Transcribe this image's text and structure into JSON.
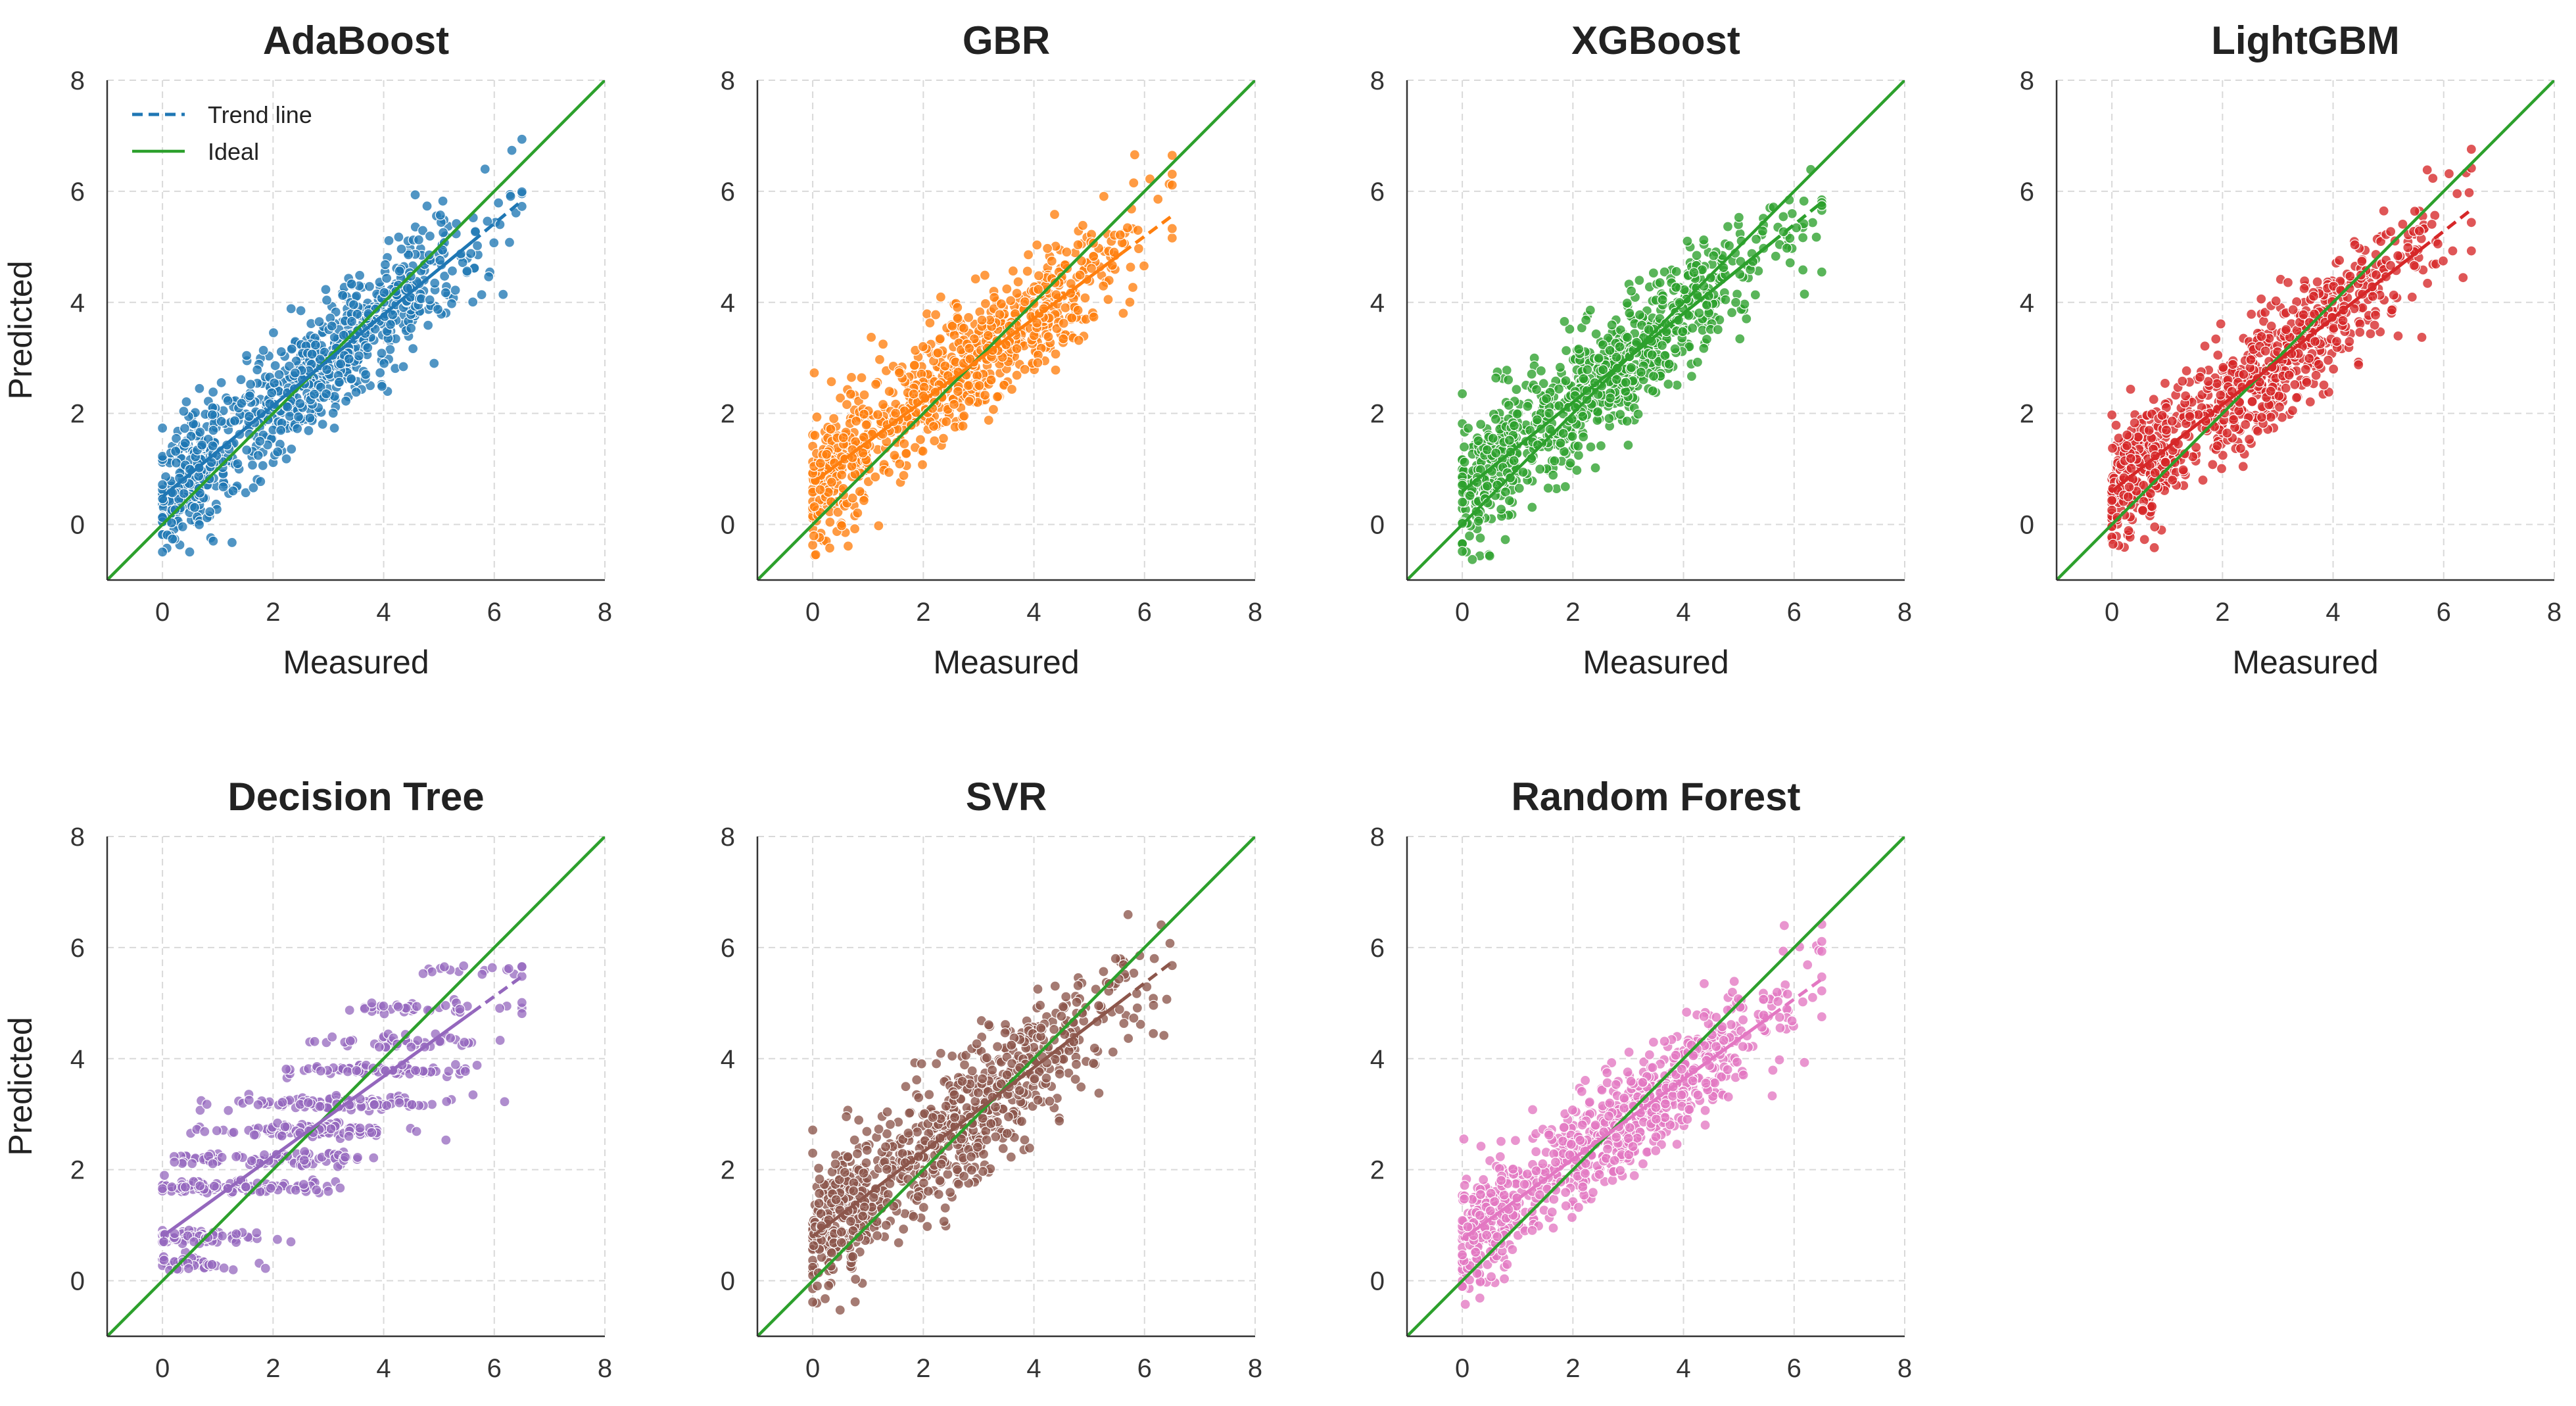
{
  "figure": {
    "ideal_color": "#2ca02c",
    "legend": {
      "trend_label": "Trend line",
      "ideal_label": "Ideal",
      "location": "upper-left"
    }
  },
  "chart_data": [
    {
      "type": "scatter",
      "title": "AdaBoost",
      "color": "#1f77b4",
      "xlabel": "Measured",
      "ylabel": "Predicted",
      "xlim": [
        -1,
        8
      ],
      "ylim": [
        -1,
        8
      ],
      "xticks": [
        0,
        2,
        4,
        6,
        8
      ],
      "yticks": [
        0,
        2,
        4,
        6,
        8
      ],
      "grid": true,
      "trend": {
        "intercept": 0.5,
        "slope": 0.82,
        "x_range": [
          0,
          6.5
        ]
      },
      "ideal": {
        "intercept": 0,
        "slope": 1
      },
      "approx_points": 900,
      "noise": 0.55
    },
    {
      "type": "scatter",
      "title": "GBR",
      "color": "#ff7f0e",
      "xlabel": "Measured",
      "ylabel": "",
      "xlim": [
        -1,
        8
      ],
      "ylim": [
        -1,
        8
      ],
      "xticks": [
        0,
        2,
        4,
        6,
        8
      ],
      "yticks": [
        0,
        2,
        4,
        6,
        8
      ],
      "grid": true,
      "trend": {
        "intercept": 0.75,
        "slope": 0.74,
        "x_range": [
          0,
          6.5
        ]
      },
      "ideal": {
        "intercept": 0,
        "slope": 1
      },
      "approx_points": 900,
      "noise": 0.55
    },
    {
      "type": "scatter",
      "title": "XGBoost",
      "color": "#2ca02c",
      "xlabel": "Measured",
      "ylabel": "",
      "xlim": [
        -1,
        8
      ],
      "ylim": [
        -1,
        8
      ],
      "xticks": [
        0,
        2,
        4,
        6,
        8
      ],
      "yticks": [
        0,
        2,
        4,
        6,
        8
      ],
      "grid": true,
      "trend": {
        "intercept": 0.6,
        "slope": 0.8,
        "x_range": [
          0,
          6.5
        ]
      },
      "ideal": {
        "intercept": 0,
        "slope": 1
      },
      "approx_points": 900,
      "noise": 0.55
    },
    {
      "type": "scatter",
      "title": "LightGBM",
      "color": "#d62728",
      "xlabel": "Measured",
      "ylabel": "",
      "xlim": [
        -1,
        8
      ],
      "ylim": [
        -1,
        8
      ],
      "xticks": [
        0,
        2,
        4,
        6,
        8
      ],
      "yticks": [
        0,
        2,
        4,
        6,
        8
      ],
      "grid": true,
      "trend": {
        "intercept": 0.6,
        "slope": 0.78,
        "x_range": [
          0,
          6.5
        ]
      },
      "ideal": {
        "intercept": 0,
        "slope": 1
      },
      "approx_points": 900,
      "noise": 0.55
    },
    {
      "type": "scatter",
      "title": "Decision Tree",
      "color": "#9467bd",
      "xlabel": "",
      "ylabel": "Predicted",
      "xlim": [
        -1,
        8
      ],
      "ylim": [
        -1,
        8
      ],
      "xticks": [
        0,
        2,
        4,
        6,
        8
      ],
      "yticks": [
        0,
        2,
        4,
        6,
        8
      ],
      "grid": true,
      "trend": {
        "intercept": 0.8,
        "slope": 0.72,
        "x_range": [
          0,
          6.5
        ]
      },
      "ideal": {
        "intercept": 0,
        "slope": 1
      },
      "approx_points": 700,
      "noise": 0.7
    },
    {
      "type": "scatter",
      "title": "SVR",
      "color": "#8c564b",
      "xlabel": "",
      "ylabel": "",
      "xlim": [
        -1,
        8
      ],
      "ylim": [
        -1,
        8
      ],
      "xticks": [
        0,
        2,
        4,
        6,
        8
      ],
      "yticks": [
        0,
        2,
        4,
        6,
        8
      ],
      "grid": true,
      "trend": {
        "intercept": 0.8,
        "slope": 0.76,
        "x_range": [
          0,
          6.5
        ]
      },
      "ideal": {
        "intercept": 0,
        "slope": 1
      },
      "approx_points": 900,
      "noise": 0.6
    },
    {
      "type": "scatter",
      "title": "Random Forest",
      "color": "#e377c2",
      "xlabel": "",
      "ylabel": "",
      "xlim": [
        -1,
        8
      ],
      "ylim": [
        -1,
        8
      ],
      "xticks": [
        0,
        2,
        4,
        6,
        8
      ],
      "yticks": [
        0,
        2,
        4,
        6,
        8
      ],
      "grid": true,
      "trend": {
        "intercept": 0.75,
        "slope": 0.72,
        "x_range": [
          0,
          6.5
        ]
      },
      "ideal": {
        "intercept": 0,
        "slope": 1
      },
      "approx_points": 900,
      "noise": 0.5
    }
  ]
}
